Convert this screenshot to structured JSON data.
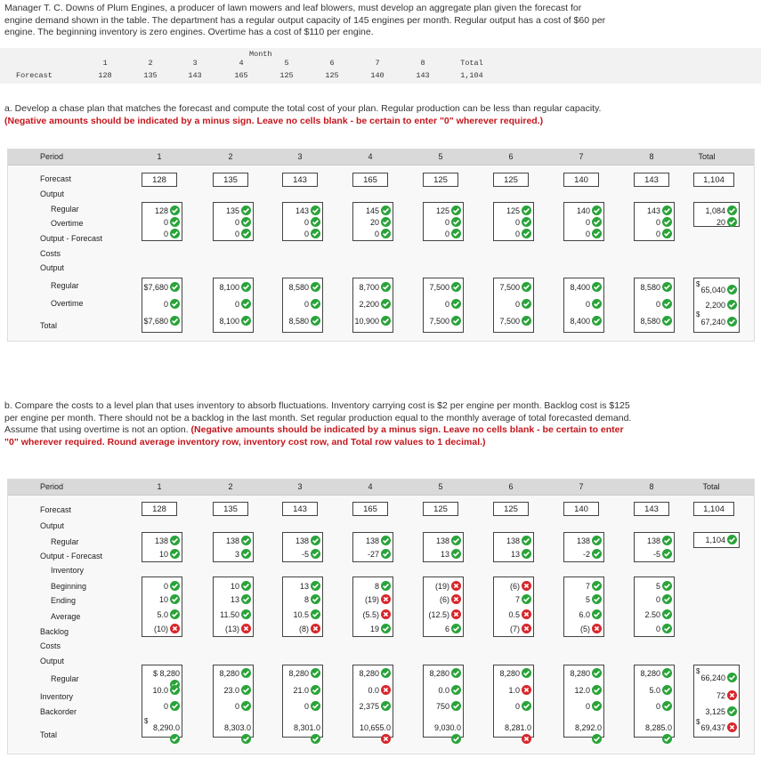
{
  "intro": "Manager T. C. Downs of Plum Engines, a producer of lawn mowers and leaf blowers, must develop an aggregate plan given the forecast for engine demand shown in the table. The department has a regular output capacity of 145 engines per month. Regular output has a cost of $60 per engine. The beginning inventory is zero engines. Overtime has a cost of $110 per engine.",
  "forecast_table": {
    "month_header": "Month",
    "row_label": "Forecast",
    "months": [
      "1",
      "2",
      "3",
      "4",
      "5",
      "6",
      "7",
      "8",
      "Total"
    ],
    "values": [
      "128",
      "135",
      "143",
      "165",
      "125",
      "125",
      "140",
      "143",
      "1,104"
    ]
  },
  "part_a": {
    "instructions": "a. Develop a chase plan that matches the forecast and compute the total cost of your plan. Regular production can be less than regular capacity.",
    "instructions_red": "(Negative amounts should be indicated by a minus sign. Leave no cells blank - be certain to enter \"0\" wherever required.)",
    "period_label": "Period",
    "periods": [
      "1",
      "2",
      "3",
      "4",
      "5",
      "6",
      "7",
      "8",
      "Total"
    ],
    "labels": {
      "forecast": "Forecast",
      "output": "Output",
      "regular": "Regular",
      "overtime": "Overtime",
      "output_forecast": "Output - Forecast",
      "costs": "Costs",
      "output2": "Output",
      "regular_cost": "Regular",
      "overtime_cost": "Overtime",
      "total": "Total"
    },
    "forecast": [
      "128",
      "135",
      "143",
      "165",
      "125",
      "125",
      "140",
      "143",
      "1,104"
    ],
    "regular": [
      "128",
      "135",
      "143",
      "145",
      "125",
      "125",
      "140",
      "143",
      "1,084"
    ],
    "overtime": [
      "0",
      "0",
      "0",
      "20",
      "0",
      "0",
      "0",
      "0",
      "20"
    ],
    "output_forecast": [
      "0",
      "0",
      "0",
      "0",
      "0",
      "0",
      "0",
      "0"
    ],
    "regular_cost": [
      "$7,680",
      "8,100",
      "8,580",
      "8,700",
      "7,500",
      "7,500",
      "8,400",
      "8,580",
      "65,040"
    ],
    "overtime_cost": [
      "0",
      "0",
      "0",
      "2,200",
      "0",
      "0",
      "0",
      "0",
      "2,200"
    ],
    "total_cost": [
      "$7,680",
      "8,100",
      "8,580",
      "10,900",
      "7,500",
      "7,500",
      "8,400",
      "8,580",
      "67,240"
    ],
    "dollar": "$"
  },
  "part_b": {
    "instructions": "b. Compare the costs to a level plan that uses inventory to absorb fluctuations. Inventory carrying cost is $2 per engine per month. Backlog cost is $125 per engine per month. There should not be a backlog in the last month. Set regular production equal to the monthly average of total forecasted demand. Assume that using overtime is not an option.",
    "instructions_red": "(Negative amounts should be indicated by a minus sign. Leave no cells blank - be certain to enter \"0\" wherever required. Round average inventory row, inventory cost row, and Total row values to 1 decimal.)",
    "period_label": "Period",
    "periods": [
      "1",
      "2",
      "3",
      "4",
      "5",
      "6",
      "7",
      "8",
      "Total"
    ],
    "labels": {
      "forecast": "Forecast",
      "output": "Output",
      "regular": "Regular",
      "output_forecast": "Output - Forecast",
      "inventory": "Inventory",
      "beginning": "Beginning",
      "ending": "Ending",
      "average": "Average",
      "backlog": "Backlog",
      "costs": "Costs",
      "output2": "Output",
      "regular_cost": "Regular",
      "inventory_cost": "Inventory",
      "backorder": "Backorder",
      "total": "Total"
    },
    "forecast": [
      "128",
      "135",
      "143",
      "165",
      "125",
      "125",
      "140",
      "143",
      "1,104"
    ],
    "regular": [
      [
        "138",
        "ok"
      ],
      [
        "138",
        "ok"
      ],
      [
        "138",
        "ok"
      ],
      [
        "138",
        "ok"
      ],
      [
        "138",
        "ok"
      ],
      [
        "138",
        "ok"
      ],
      [
        "138",
        "ok"
      ],
      [
        "138",
        "ok"
      ],
      [
        "1,104",
        "ok"
      ]
    ],
    "output_forecast": [
      [
        "10",
        "ok"
      ],
      [
        "3",
        "ok"
      ],
      [
        "-5",
        "ok"
      ],
      [
        "-27",
        "ok"
      ],
      [
        "13",
        "ok"
      ],
      [
        "13",
        "ok"
      ],
      [
        "-2",
        "ok"
      ],
      [
        "-5",
        "ok"
      ]
    ],
    "beginning": [
      [
        "0",
        "ok"
      ],
      [
        "10",
        "ok"
      ],
      [
        "13",
        "ok"
      ],
      [
        "8",
        "ok"
      ],
      [
        "(19)",
        "bad"
      ],
      [
        "(6)",
        "bad"
      ],
      [
        "7",
        "ok"
      ],
      [
        "5",
        "ok"
      ]
    ],
    "ending": [
      [
        "10",
        "ok"
      ],
      [
        "13",
        "ok"
      ],
      [
        "8",
        "ok"
      ],
      [
        "(19)",
        "bad"
      ],
      [
        "(6)",
        "bad"
      ],
      [
        "7",
        "ok"
      ],
      [
        "5",
        "ok"
      ],
      [
        "0",
        "ok"
      ]
    ],
    "average": [
      [
        "5.0",
        "ok"
      ],
      [
        "11.50",
        "ok"
      ],
      [
        "10.5",
        "ok"
      ],
      [
        "(5.5)",
        "bad"
      ],
      [
        "(12.5)",
        "bad"
      ],
      [
        "0.5",
        "bad"
      ],
      [
        "6.0",
        "ok"
      ],
      [
        "2.50",
        "ok"
      ]
    ],
    "backlog": [
      [
        "(10)",
        "bad"
      ],
      [
        "(13)",
        "bad"
      ],
      [
        "(8)",
        "bad"
      ],
      [
        "19",
        "ok"
      ],
      [
        "6",
        "ok"
      ],
      [
        "(7)",
        "bad"
      ],
      [
        "(5)",
        "bad"
      ],
      [
        "0",
        "ok"
      ]
    ],
    "regular_cost": [
      [
        "$ 8,280",
        "ok"
      ],
      [
        "8,280",
        "ok"
      ],
      [
        "8,280",
        "ok"
      ],
      [
        "8,280",
        "ok"
      ],
      [
        "8,280",
        "ok"
      ],
      [
        "8,280",
        "ok"
      ],
      [
        "8,280",
        "ok"
      ],
      [
        "8,280",
        "ok"
      ],
      [
        "66,240",
        "ok"
      ]
    ],
    "inventory_cost": [
      [
        "10.0",
        "ok"
      ],
      [
        "23.0",
        "ok"
      ],
      [
        "21.0",
        "ok"
      ],
      [
        "0.0",
        "bad"
      ],
      [
        "0.0",
        "ok"
      ],
      [
        "1.0",
        "bad"
      ],
      [
        "12.0",
        "ok"
      ],
      [
        "5.0",
        "ok"
      ],
      [
        "72",
        "bad"
      ]
    ],
    "backorder_cost": [
      [
        "0",
        "ok"
      ],
      [
        "0",
        "ok"
      ],
      [
        "0",
        "ok"
      ],
      [
        "2,375",
        "ok"
      ],
      [
        "750",
        "ok"
      ],
      [
        "0",
        "ok"
      ],
      [
        "0",
        "ok"
      ],
      [
        "0",
        "ok"
      ],
      [
        "3,125",
        "ok"
      ]
    ],
    "total_cost": [
      [
        "8,290.0",
        "ok"
      ],
      [
        "8,303.0",
        "ok"
      ],
      [
        "8,301.0",
        "ok"
      ],
      [
        "10,655.0",
        "bad"
      ],
      [
        "9,030.0",
        "ok"
      ],
      [
        "8,281.0",
        "bad"
      ],
      [
        "8,292.0",
        "ok"
      ],
      [
        "8,285.0",
        "ok"
      ],
      [
        "69,437",
        "bad"
      ]
    ],
    "dollar": "$"
  }
}
